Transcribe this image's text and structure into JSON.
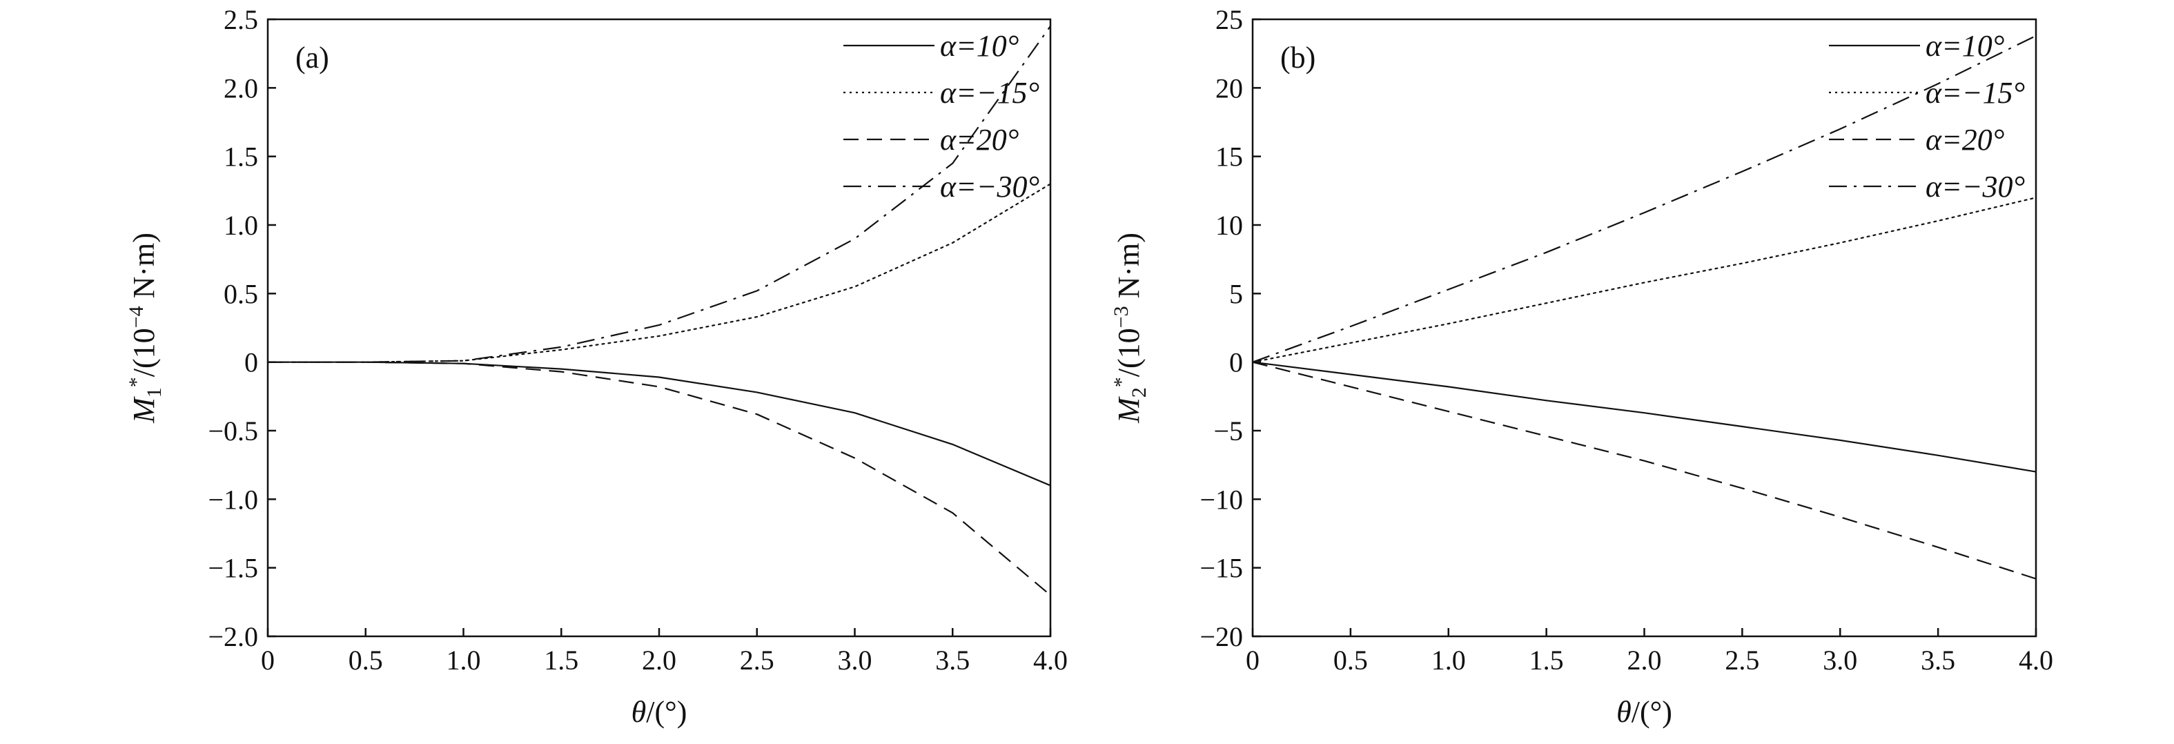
{
  "chart_data": [
    {
      "type": "line",
      "panel_label": "(a)",
      "xlabel": "θ/(°)",
      "ylabel": "M1*/(10−4 N·m)",
      "ylabel_parts": {
        "sym": "M",
        "sub": "1",
        "sup": "*",
        "rest": "/(10",
        "exp": "−4",
        "unit": " N·m)"
      },
      "xlim": [
        0,
        4.0
      ],
      "ylim": [
        -2.0,
        2.5
      ],
      "x_ticks": [
        0,
        0.5,
        1.0,
        1.5,
        2.0,
        2.5,
        3.0,
        3.5,
        4.0
      ],
      "x_tick_labels": [
        "0",
        "0.5",
        "1.0",
        "1.5",
        "2.0",
        "2.5",
        "3.0",
        "3.5",
        "4.0"
      ],
      "y_ticks": [
        -2.0,
        -1.5,
        -1.0,
        -0.5,
        0,
        0.5,
        1.0,
        1.5,
        2.0,
        2.5
      ],
      "y_tick_labels": [
        "−2.0",
        "−1.5",
        "−1.0",
        "−0.5",
        "0",
        "0.5",
        "1.0",
        "1.5",
        "2.0",
        "2.5"
      ],
      "grid": false,
      "legend_position": "top-right",
      "x": [
        0,
        0.5,
        1.0,
        1.5,
        2.0,
        2.5,
        3.0,
        3.5,
        4.0
      ],
      "series": [
        {
          "name": "α=10°",
          "style": "solid",
          "values": [
            0,
            0,
            -0.01,
            -0.05,
            -0.11,
            -0.22,
            -0.37,
            -0.6,
            -0.9
          ]
        },
        {
          "name": "α=−15°",
          "style": "dotted",
          "values": [
            0,
            0,
            0.01,
            0.09,
            0.19,
            0.33,
            0.55,
            0.87,
            1.3
          ]
        },
        {
          "name": "α=20°",
          "style": "dashed",
          "values": [
            0,
            0,
            -0.01,
            -0.07,
            -0.18,
            -0.38,
            -0.7,
            -1.1,
            -1.7
          ]
        },
        {
          "name": "α=−30°",
          "style": "dashdot",
          "values": [
            0,
            0,
            0.01,
            0.11,
            0.27,
            0.52,
            0.9,
            1.45,
            2.45
          ]
        }
      ]
    },
    {
      "type": "line",
      "panel_label": "(b)",
      "xlabel": "θ/(°)",
      "ylabel": "M2*/(10−3 N·m)",
      "ylabel_parts": {
        "sym": "M",
        "sub": "2",
        "sup": "*",
        "rest": "/(10",
        "exp": "−3",
        "unit": " N·m)"
      },
      "xlim": [
        0,
        4.0
      ],
      "ylim": [
        -20,
        25
      ],
      "x_ticks": [
        0,
        0.5,
        1.0,
        1.5,
        2.0,
        2.5,
        3.0,
        3.5,
        4.0
      ],
      "x_tick_labels": [
        "0",
        "0.5",
        "1.0",
        "1.5",
        "2.0",
        "2.5",
        "3.0",
        "3.5",
        "4.0"
      ],
      "y_ticks": [
        -20,
        -15,
        -10,
        -5,
        0,
        5,
        10,
        15,
        20,
        25
      ],
      "y_tick_labels": [
        "−20",
        "−15",
        "−10",
        "−5",
        "0",
        "5",
        "10",
        "15",
        "20",
        "25"
      ],
      "grid": false,
      "legend_position": "top-right",
      "x": [
        0,
        0.5,
        1.0,
        1.5,
        2.0,
        2.5,
        3.0,
        3.5,
        4.0
      ],
      "series": [
        {
          "name": "α=10°",
          "style": "solid",
          "values": [
            0,
            -0.9,
            -1.8,
            -2.8,
            -3.7,
            -4.7,
            -5.7,
            -6.8,
            -8.0
          ]
        },
        {
          "name": "α=−15°",
          "style": "dotted",
          "values": [
            0,
            1.4,
            2.8,
            4.3,
            5.8,
            7.2,
            8.7,
            10.3,
            12.0
          ]
        },
        {
          "name": "α=20°",
          "style": "dashed",
          "values": [
            0,
            -1.8,
            -3.6,
            -5.4,
            -7.2,
            -9.2,
            -11.3,
            -13.5,
            -15.8
          ]
        },
        {
          "name": "α=−30°",
          "style": "dashdot",
          "values": [
            0,
            2.6,
            5.3,
            8.0,
            10.9,
            13.9,
            17.0,
            20.3,
            23.8
          ]
        }
      ]
    }
  ]
}
